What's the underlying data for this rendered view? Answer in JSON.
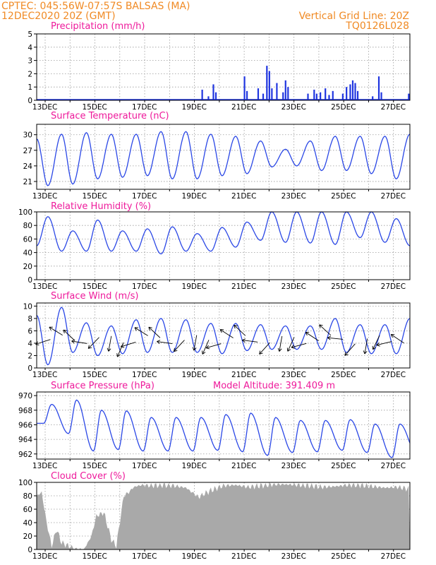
{
  "header": {
    "station_line": "CPTEC:   045:56W-07:57S   BALSAS (MA)",
    "date_line": "12DEC2020 20Z (GMT)",
    "grid_note": "Vertical Grid Line: 20Z",
    "run_code": "TQ0126L028"
  },
  "x_tick_labels": [
    "13DEC",
    "15DEC",
    "17DEC",
    "19DEC",
    "21DEC",
    "23DEC",
    "25DEC",
    "27DEC"
  ],
  "colors": {
    "line": "#2a47e6",
    "bar": "#1f35e0",
    "cloud": "#a9a9a9",
    "title": "#ee1a9b",
    "header": "#f08a24"
  },
  "chart_data": [
    {
      "type": "bar",
      "title": "Precipitation (mm/h)",
      "ylim": [
        0,
        5
      ],
      "yticks": [
        "0",
        "1",
        "2",
        "3",
        "4",
        "5"
      ],
      "grid": true,
      "x_unit": "days since 12DEC2020 20Z",
      "events": [
        {
          "x": 6.65,
          "y": 0.8
        },
        {
          "x": 6.9,
          "y": 0.3
        },
        {
          "x": 7.1,
          "y": 1.2
        },
        {
          "x": 7.2,
          "y": 0.6
        },
        {
          "x": 8.35,
          "y": 1.8
        },
        {
          "x": 8.45,
          "y": 0.7
        },
        {
          "x": 8.9,
          "y": 0.9
        },
        {
          "x": 9.1,
          "y": 0.5
        },
        {
          "x": 9.25,
          "y": 2.6
        },
        {
          "x": 9.35,
          "y": 2.2
        },
        {
          "x": 9.45,
          "y": 0.9
        },
        {
          "x": 9.65,
          "y": 1.3
        },
        {
          "x": 9.9,
          "y": 0.6
        },
        {
          "x": 10.0,
          "y": 1.5
        },
        {
          "x": 10.1,
          "y": 1.0
        },
        {
          "x": 10.9,
          "y": 0.5
        },
        {
          "x": 11.15,
          "y": 0.8
        },
        {
          "x": 11.25,
          "y": 0.5
        },
        {
          "x": 11.4,
          "y": 0.6
        },
        {
          "x": 11.6,
          "y": 0.9
        },
        {
          "x": 11.75,
          "y": 0.4
        },
        {
          "x": 11.9,
          "y": 0.7
        },
        {
          "x": 12.3,
          "y": 0.5
        },
        {
          "x": 12.45,
          "y": 1.0
        },
        {
          "x": 12.6,
          "y": 1.2
        },
        {
          "x": 12.7,
          "y": 1.5
        },
        {
          "x": 12.8,
          "y": 1.3
        },
        {
          "x": 12.9,
          "y": 0.7
        },
        {
          "x": 13.5,
          "y": 0.3
        },
        {
          "x": 13.75,
          "y": 1.8
        },
        {
          "x": 13.85,
          "y": 0.6
        },
        {
          "x": 14.95,
          "y": 0.5
        }
      ]
    },
    {
      "type": "line",
      "title": "Surface Temperature (nC)",
      "ylim": [
        19.5,
        32
      ],
      "yticks": [
        "21",
        "24",
        "27",
        "30"
      ],
      "ytick_values": [
        21,
        24,
        27,
        30
      ],
      "grid": true,
      "x_unit": "days since 12DEC2020 20Z",
      "daily_max": [
        29.2,
        30.1,
        30.4,
        30.1,
        30.1,
        30.6,
        30.6,
        30.1,
        29.7,
        28.8,
        27.2,
        28.8,
        29.7,
        29.7,
        29.7,
        30.1
      ],
      "daily_min": [
        20.2,
        20.5,
        21.5,
        21.8,
        22.1,
        21.5,
        21.5,
        22.1,
        22.5,
        23.8,
        24.0,
        23.1,
        23.1,
        22.5,
        21.5,
        21.5
      ]
    },
    {
      "type": "line",
      "title": "Relative Humidity (%)",
      "ylim": [
        0,
        100
      ],
      "yticks": [
        "0",
        "20",
        "40",
        "60",
        "80",
        "100"
      ],
      "ytick_values": [
        0,
        20,
        40,
        60,
        80,
        100
      ],
      "grid": true,
      "x_unit": "days since 12DEC2020 20Z",
      "daily_max": [
        93,
        72,
        88,
        72,
        75,
        78,
        68,
        77,
        85,
        100,
        100,
        100,
        100,
        100,
        90,
        97
      ],
      "daily_min": [
        50,
        42,
        42,
        42,
        42,
        38,
        42,
        42,
        48,
        58,
        55,
        54,
        52,
        62,
        55,
        50
      ]
    },
    {
      "type": "line",
      "title": "Surface Wind (m/s)",
      "ylim": [
        0,
        10.5
      ],
      "yticks": [
        "0",
        "2",
        "4",
        "6",
        "8",
        "10"
      ],
      "ytick_values": [
        0,
        2,
        4,
        6,
        8,
        10
      ],
      "grid": true,
      "x_unit": "days since 12DEC2020 20Z",
      "daily_max": [
        8.5,
        9.8,
        7.3,
        6.8,
        7.8,
        8.0,
        7.8,
        7.2,
        7.2,
        7.0,
        6.8,
        6.8,
        8.0,
        7.0,
        7.0,
        8.0
      ],
      "daily_min": [
        0.5,
        2.5,
        2.0,
        2.3,
        2.5,
        2.5,
        2.5,
        2.3,
        2.8,
        3.0,
        3.0,
        3.0,
        2.5,
        2.3,
        2.3,
        2.3
      ],
      "vectors_note": "wind direction arrows along series"
    },
    {
      "type": "line",
      "title": "Surface Pressure (hPa)",
      "annotation": "Model Altitude: 391.409  m",
      "ylim": [
        961.3,
        970.5
      ],
      "yticks": [
        "962",
        "964",
        "966",
        "968",
        "970"
      ],
      "ytick_values": [
        962,
        964,
        966,
        968,
        970
      ],
      "grid": true,
      "x_unit": "days since 12DEC2020 20Z",
      "daily_max": [
        968.8,
        969.4,
        968.0,
        967.9,
        967.0,
        967.0,
        967.0,
        967.4,
        967.6,
        967.0,
        966.6,
        966.6,
        966.7,
        966.1,
        966.1,
        965.5
      ],
      "daily_min": [
        966.2,
        964.8,
        962.4,
        962.6,
        962.4,
        962.4,
        962.4,
        962.5,
        962.3,
        961.8,
        962.2,
        962.3,
        962.5,
        962.2,
        961.5,
        962.0
      ]
    },
    {
      "type": "area",
      "title": "Cloud Cover (%)",
      "ylim": [
        0,
        100
      ],
      "yticks": [
        "0",
        "20",
        "40",
        "60",
        "80",
        "100"
      ],
      "ytick_values": [
        0,
        20,
        40,
        60,
        80,
        100
      ],
      "grid": true,
      "x_unit": "days since 12DEC2020 20Z",
      "x": [
        0,
        0.2,
        0.4,
        0.6,
        0.8,
        1.0,
        1.3,
        1.6,
        1.9,
        2.2,
        2.4,
        2.7,
        3.0,
        3.2,
        3.5,
        3.7,
        3.9,
        4.2,
        4.6,
        5.0,
        5.5,
        6.0,
        6.5,
        7.0,
        7.5,
        8.0,
        8.5,
        9.0,
        9.5,
        10.0,
        10.5,
        11.0,
        11.5,
        12.0,
        12.5,
        13.0,
        13.5,
        14.0,
        14.5,
        15.0
      ],
      "y": [
        80,
        85,
        40,
        5,
        30,
        10,
        5,
        0,
        0,
        20,
        50,
        55,
        15,
        5,
        80,
        85,
        93,
        96,
        95,
        96,
        95,
        92,
        78,
        88,
        95,
        96,
        93,
        95,
        97,
        97,
        96,
        95,
        93,
        94,
        96,
        96,
        94,
        92,
        93,
        90
      ]
    }
  ]
}
